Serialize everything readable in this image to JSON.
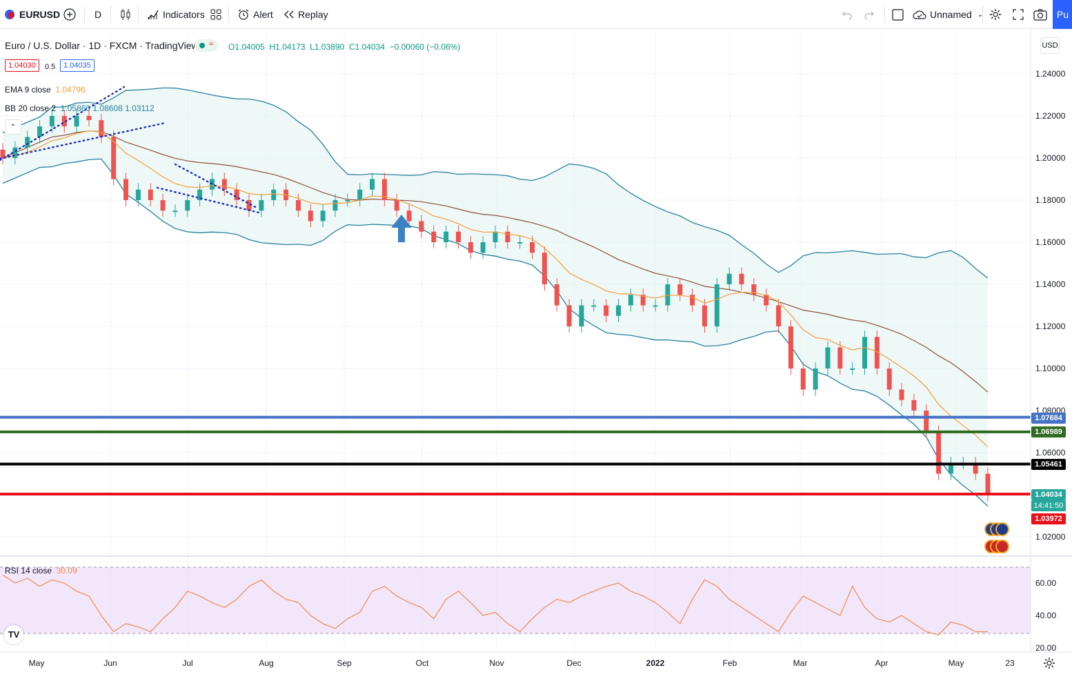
{
  "toolbar": {
    "symbol": "EURUSD",
    "interval": "D",
    "indicators_label": "Indicators",
    "alert_label": "Alert",
    "replay_label": "Replay",
    "layout_name": "Unnamed",
    "publish_label": "Pu"
  },
  "legend": {
    "title": "Euro / U.S. Dollar · 1D · FXCM · TradingView",
    "open": "O1.04005",
    "high": "H1.04173",
    "low": "L1.03890",
    "close": "C1.04034",
    "change": "−0.00060 (−0.06%)",
    "sell_price": "1.04030",
    "spread": "0.5",
    "buy_price": "1.04035",
    "ema_label": "EMA 9 close",
    "ema_value": "1.04796",
    "bb_label": "BB 20 close 2",
    "bb_values": "1.05860  1.08608  1.03112",
    "rsi_label": "RSI 14 close",
    "rsi_value": "30.09",
    "currency": "USD"
  },
  "price_axis": {
    "ticks": [
      "1.24000",
      "1.22000",
      "1.20000",
      "1.18000",
      "1.16000",
      "1.14000",
      "1.12000",
      "1.10000",
      "1.08000",
      "1.06000",
      "1.02000"
    ],
    "tags": [
      {
        "value": "1.07684",
        "color": "#4472c4"
      },
      {
        "value": "1.06989",
        "color": "#2e6b1f"
      },
      {
        "value": "1.05461",
        "color": "#000000"
      },
      {
        "value": "1.04034",
        "color": "#26a69a"
      },
      {
        "value": "1.03972",
        "color": "#e8101b"
      }
    ],
    "countdown": "14:41:50"
  },
  "rsi_axis": {
    "ticks": [
      "60.00",
      "40.00",
      "20.00"
    ]
  },
  "time_axis": {
    "labels": [
      "May",
      "Jun",
      "Jul",
      "Aug",
      "Sep",
      "Oct",
      "Nov",
      "Dec",
      "2022",
      "Feb",
      "Mar",
      "Apr",
      "May",
      "23"
    ]
  },
  "chart_data": {
    "type": "line",
    "series_kind": "candlestick",
    "ylim": [
      1.01,
      1.25
    ],
    "horizontal_lines": [
      1.07684,
      1.06989,
      1.05461,
      1.04034
    ],
    "close": [
      1.2,
      1.205,
      1.21,
      1.215,
      1.22,
      1.215,
      1.22,
      1.218,
      1.21,
      1.19,
      1.18,
      1.185,
      1.18,
      1.175,
      1.175,
      1.18,
      1.185,
      1.19,
      1.185,
      1.18,
      1.175,
      1.18,
      1.185,
      1.18,
      1.175,
      1.17,
      1.175,
      1.18,
      1.18,
      1.185,
      1.19,
      1.18,
      1.175,
      1.17,
      1.165,
      1.16,
      1.165,
      1.16,
      1.155,
      1.16,
      1.165,
      1.16,
      1.16,
      1.155,
      1.14,
      1.13,
      1.12,
      1.13,
      1.13,
      1.125,
      1.13,
      1.135,
      1.13,
      1.13,
      1.14,
      1.135,
      1.13,
      1.12,
      1.14,
      1.145,
      1.14,
      1.135,
      1.13,
      1.12,
      1.1,
      1.09,
      1.1,
      1.11,
      1.1,
      1.1,
      1.115,
      1.1,
      1.09,
      1.085,
      1.08,
      1.07,
      1.05,
      1.055,
      1.055,
      1.05,
      1.04
    ],
    "rsi": [
      65,
      60,
      63,
      58,
      62,
      60,
      55,
      52,
      40,
      30,
      35,
      33,
      30,
      38,
      45,
      55,
      52,
      48,
      45,
      50,
      58,
      62,
      55,
      50,
      48,
      40,
      35,
      32,
      38,
      42,
      55,
      58,
      52,
      48,
      45,
      38,
      50,
      55,
      48,
      40,
      42,
      35,
      30,
      38,
      45,
      50,
      48,
      52,
      55,
      58,
      60,
      55,
      52,
      48,
      42,
      35,
      50,
      62,
      58,
      50,
      45,
      40,
      35,
      30,
      42,
      52,
      48,
      44,
      40,
      58,
      45,
      38,
      36,
      40,
      35,
      30,
      28,
      36,
      34,
      30,
      30
    ]
  }
}
